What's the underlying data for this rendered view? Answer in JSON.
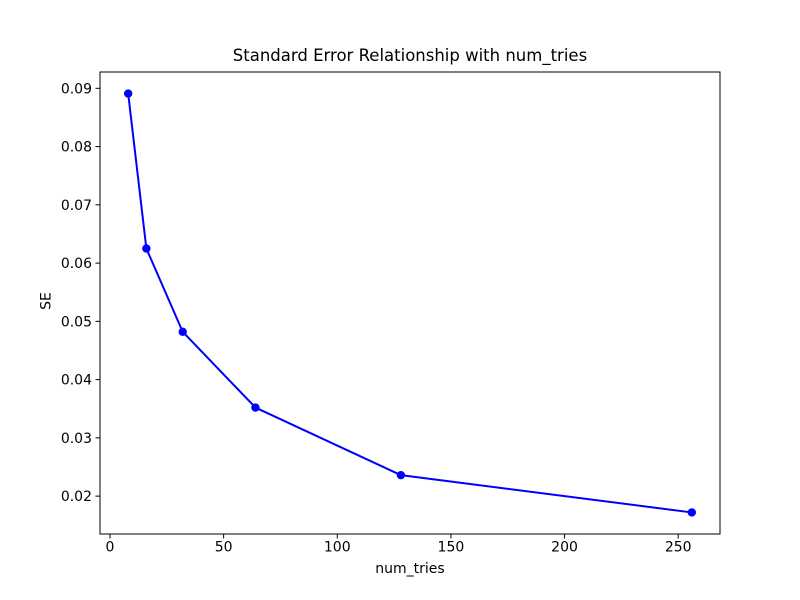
{
  "chart_data": {
    "type": "line",
    "title": "Standard Error Relationship with num_tries",
    "xlabel": "num_tries",
    "ylabel": "SE",
    "series": [
      {
        "name": "SE",
        "x": [
          8,
          16,
          32,
          64,
          128,
          256
        ],
        "y": [
          0.0891,
          0.0625,
          0.0482,
          0.0352,
          0.0236,
          0.0172
        ]
      }
    ],
    "xlim": [
      -4.4,
      268.4
    ],
    "ylim": [
      0.0135,
      0.0928
    ],
    "xticks": [
      0,
      50,
      100,
      150,
      200,
      250
    ],
    "xtick_labels": [
      "0",
      "50",
      "100",
      "150",
      "200",
      "250"
    ],
    "yticks": [
      0.02,
      0.03,
      0.04,
      0.05,
      0.06,
      0.07,
      0.08,
      0.09
    ],
    "ytick_labels": [
      "0.02",
      "0.03",
      "0.04",
      "0.05",
      "0.06",
      "0.07",
      "0.08",
      "0.09"
    ],
    "grid": false,
    "legend": null,
    "line_color": "#0000ff",
    "marker": "o",
    "axis_color": "#000000",
    "background_color": "#ffffff"
  }
}
